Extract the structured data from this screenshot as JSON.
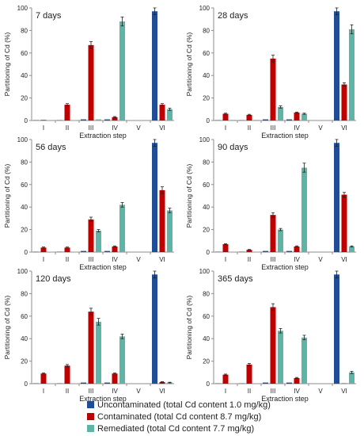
{
  "colors": {
    "uncontaminated": "#1f4e96",
    "contaminated": "#c00000",
    "remediated": "#5fb5a5",
    "axis": "#8c8c8c",
    "text": "#222222"
  },
  "legend": [
    {
      "key": "uncontaminated",
      "label": "Uncontaminated (total Cd content 1.0 mg/kg)"
    },
    {
      "key": "contaminated",
      "label": "Contaminated (total Cd content 8.7 mg/kg)"
    },
    {
      "key": "remediated",
      "label": "Remediated (total Cd content 7.7 mg/kg)"
    }
  ],
  "chart_data": [
    {
      "type": "bar",
      "title": "7 days",
      "categories": [
        "I",
        "II",
        "III",
        "IV",
        "V",
        "VI"
      ],
      "xlabel": "Extraction step",
      "ylabel": "Partitioning of Cd (%)",
      "ylim": [
        0,
        100
      ],
      "yticks": [
        0,
        20,
        40,
        60,
        80,
        100
      ],
      "series": [
        {
          "key": "uncontaminated",
          "values": [
            0.3,
            0.3,
            1,
            1,
            0,
            97
          ],
          "err": [
            0,
            0,
            0,
            0,
            0,
            3
          ]
        },
        {
          "key": "contaminated",
          "values": [
            0.5,
            14,
            67,
            3,
            0,
            14
          ],
          "err": [
            0,
            1,
            3,
            0.5,
            0,
            1
          ]
        },
        {
          "key": "remediated",
          "values": [
            0.2,
            0.3,
            1,
            88,
            0,
            10
          ],
          "err": [
            0,
            0,
            0,
            4,
            0,
            1
          ]
        }
      ]
    },
    {
      "type": "bar",
      "title": "28 days",
      "categories": [
        "I",
        "II",
        "III",
        "IV",
        "V",
        "VI"
      ],
      "xlabel": "Extraction step",
      "ylabel": "Partitioning of Cd (%)",
      "ylim": [
        0,
        100
      ],
      "yticks": [
        0,
        20,
        40,
        60,
        80,
        100
      ],
      "series": [
        {
          "key": "uncontaminated",
          "values": [
            0.3,
            0.3,
            1,
            1,
            0,
            97
          ],
          "err": [
            0,
            0,
            0,
            0,
            0,
            3
          ]
        },
        {
          "key": "contaminated",
          "values": [
            6,
            5,
            55,
            7,
            0,
            32
          ],
          "err": [
            0.5,
            0.5,
            3,
            0.5,
            0,
            1.5
          ]
        },
        {
          "key": "remediated",
          "values": [
            0.5,
            0.5,
            12,
            6,
            0,
            81
          ],
          "err": [
            0,
            0,
            1,
            0.5,
            0,
            4
          ]
        }
      ]
    },
    {
      "type": "bar",
      "title": "56 days",
      "categories": [
        "I",
        "II",
        "III",
        "IV",
        "V",
        "VI"
      ],
      "xlabel": "Extraction step",
      "ylabel": "Partitioning of Cd (%)",
      "ylim": [
        0,
        100
      ],
      "yticks": [
        0,
        20,
        40,
        60,
        80,
        100
      ],
      "series": [
        {
          "key": "uncontaminated",
          "values": [
            0.3,
            0.3,
            1,
            1,
            0,
            97
          ],
          "err": [
            0,
            0,
            0,
            0,
            0,
            3
          ]
        },
        {
          "key": "contaminated",
          "values": [
            4,
            4,
            29,
            5,
            0,
            55
          ],
          "err": [
            0.5,
            0.5,
            2,
            0.5,
            0,
            3
          ]
        },
        {
          "key": "remediated",
          "values": [
            0.3,
            0.3,
            19,
            42,
            0,
            37
          ],
          "err": [
            0,
            0,
            1,
            2,
            0,
            2
          ]
        }
      ]
    },
    {
      "type": "bar",
      "title": "90 days",
      "categories": [
        "I",
        "II",
        "III",
        "IV",
        "V",
        "VI"
      ],
      "xlabel": "Extraction step",
      "ylabel": "Partitioning of Cd (%)",
      "ylim": [
        0,
        100
      ],
      "yticks": [
        0,
        20,
        40,
        60,
        80,
        100
      ],
      "series": [
        {
          "key": "uncontaminated",
          "values": [
            0.3,
            0.3,
            1,
            1,
            0,
            97
          ],
          "err": [
            0,
            0,
            0,
            0,
            0,
            3
          ]
        },
        {
          "key": "contaminated",
          "values": [
            7,
            2,
            33,
            5,
            0,
            51
          ],
          "err": [
            0.5,
            0.3,
            2,
            0.5,
            0,
            2
          ]
        },
        {
          "key": "remediated",
          "values": [
            0.3,
            0.3,
            20,
            75,
            0,
            5
          ],
          "err": [
            0,
            0,
            1,
            4,
            0,
            0.5
          ]
        }
      ]
    },
    {
      "type": "bar",
      "title": "120 days",
      "categories": [
        "I",
        "II",
        "III",
        "IV",
        "V",
        "VI"
      ],
      "xlabel": "Extraction step",
      "ylabel": "Partitioning of Cd (%)",
      "ylim": [
        0,
        100
      ],
      "yticks": [
        0,
        20,
        40,
        60,
        80,
        100
      ],
      "series": [
        {
          "key": "uncontaminated",
          "values": [
            0.3,
            0.3,
            1,
            1,
            0,
            97
          ],
          "err": [
            0,
            0,
            0,
            0,
            0,
            3
          ]
        },
        {
          "key": "contaminated",
          "values": [
            9,
            16,
            64,
            9,
            0,
            1.5
          ],
          "err": [
            0.5,
            1,
            3,
            0.5,
            0,
            0.3
          ]
        },
        {
          "key": "remediated",
          "values": [
            0.3,
            0.3,
            55,
            42,
            0,
            1
          ],
          "err": [
            0,
            0,
            3,
            2,
            0,
            0.3
          ]
        }
      ]
    },
    {
      "type": "bar",
      "title": "365 days",
      "categories": [
        "I",
        "II",
        "III",
        "IV",
        "V",
        "VI"
      ],
      "xlabel": "Extraction step",
      "ylabel": "Partitioning of Cd (%)",
      "ylim": [
        0,
        100
      ],
      "yticks": [
        0,
        20,
        40,
        60,
        80,
        100
      ],
      "series": [
        {
          "key": "uncontaminated",
          "values": [
            0.3,
            0.3,
            1,
            1,
            0,
            97
          ],
          "err": [
            0,
            0,
            0,
            0,
            0,
            3
          ]
        },
        {
          "key": "contaminated",
          "values": [
            8,
            17,
            68,
            5,
            0,
            0.3
          ],
          "err": [
            0.5,
            1,
            3,
            0.5,
            0,
            0
          ]
        },
        {
          "key": "remediated",
          "values": [
            0.3,
            0.3,
            47,
            41,
            0,
            10
          ],
          "err": [
            0,
            0,
            2,
            2,
            0,
            1
          ]
        }
      ]
    }
  ]
}
